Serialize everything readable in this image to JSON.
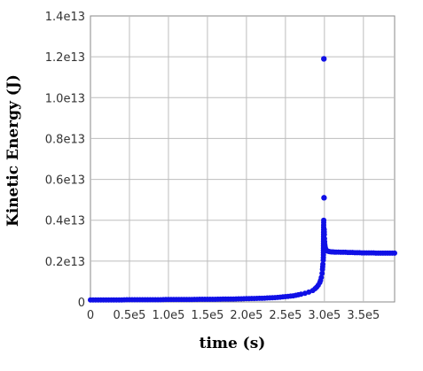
{
  "chart_data": {
    "type": "scatter",
    "title": "",
    "xlabel": "time (s)",
    "ylabel": "Kinetic Energy (J)",
    "xlim": [
      0,
      390000
    ],
    "ylim": [
      0,
      14000000000000
    ],
    "grid": true,
    "x_ticks": [
      {
        "value": 0,
        "label": "0"
      },
      {
        "value": 50000,
        "label": "0.5e5"
      },
      {
        "value": 100000,
        "label": "1.0e5"
      },
      {
        "value": 150000,
        "label": "1.5e5"
      },
      {
        "value": 200000,
        "label": "2.0e5"
      },
      {
        "value": 250000,
        "label": "2.5e5"
      },
      {
        "value": 300000,
        "label": "3.0e5"
      },
      {
        "value": 350000,
        "label": "3.5e5"
      }
    ],
    "y_ticks": [
      {
        "value": 0,
        "label": "0"
      },
      {
        "value": 2000000000000,
        "label": "0.2e13"
      },
      {
        "value": 4000000000000,
        "label": "0.4e13"
      },
      {
        "value": 6000000000000,
        "label": "0.6e13"
      },
      {
        "value": 8000000000000,
        "label": "0.8e13"
      },
      {
        "value": 10000000000000,
        "label": "1.0e13"
      },
      {
        "value": 12000000000000,
        "label": "1.2e13"
      },
      {
        "value": 14000000000000,
        "label": "1.4e13"
      }
    ],
    "colors": {
      "points": "#1010e6",
      "grid": "#bdbdbd",
      "frame": "#888888"
    },
    "series": [
      {
        "x": [
          0,
          10000,
          20000,
          30000,
          40000,
          50000,
          60000,
          70000,
          80000,
          90000,
          100000,
          110000,
          120000,
          130000,
          140000,
          150000,
          160000,
          170000,
          180000,
          190000,
          200000,
          210000,
          220000,
          230000,
          240000,
          250000,
          260000,
          270000,
          275000,
          280000,
          285000,
          288000,
          290000,
          292000,
          294000,
          295000,
          296000,
          297000,
          297500,
          298000,
          298500,
          298700,
          298900,
          299100,
          299300,
          299500,
          299700,
          299900,
          300100,
          300300,
          300500,
          300800,
          301200,
          301700,
          302300,
          303000,
          304000,
          305500,
          307000,
          309000,
          311000,
          313000,
          315000,
          318000,
          321000,
          324000,
          327000,
          330000,
          333000,
          336000,
          339000,
          342000,
          345000,
          348000,
          351000,
          354000,
          357000,
          360000,
          363000,
          366000,
          369000,
          372000,
          375000,
          378000,
          381000,
          384000,
          387000,
          390000
        ],
        "y": [
          100000000000,
          100000000000,
          100000000000,
          100000000000,
          100000000000,
          110000000000,
          110000000000,
          110000000000,
          110000000000,
          110000000000,
          120000000000,
          120000000000,
          120000000000,
          120000000000,
          130000000000,
          130000000000,
          130000000000,
          140000000000,
          140000000000,
          150000000000,
          160000000000,
          170000000000,
          180000000000,
          200000000000,
          220000000000,
          260000000000,
          300000000000,
          380000000000,
          420000000000,
          480000000000,
          560000000000,
          650000000000,
          720000000000,
          820000000000,
          950000000000,
          1050000000000,
          1200000000000,
          1400000000000,
          1600000000000,
          1850000000000,
          2050000000000,
          2300000000000,
          3300000000000,
          4000000000000,
          11900000000000,
          5100000000000,
          3550000000000,
          3300000000000,
          3100000000000,
          2950000000000,
          2820000000000,
          2720000000000,
          2640000000000,
          2580000000000,
          2540000000000,
          2510000000000,
          2490000000000,
          2470000000000,
          2460000000000,
          2450000000000,
          2450000000000,
          2440000000000,
          2440000000000,
          2440000000000,
          2430000000000,
          2430000000000,
          2430000000000,
          2420000000000,
          2420000000000,
          2420000000000,
          2410000000000,
          2410000000000,
          2410000000000,
          2400000000000,
          2400000000000,
          2400000000000,
          2400000000000,
          2400000000000,
          2400000000000,
          2390000000000,
          2390000000000,
          2390000000000,
          2390000000000,
          2390000000000,
          2390000000000,
          2390000000000,
          2390000000000,
          2390000000000
        ]
      }
    ]
  }
}
